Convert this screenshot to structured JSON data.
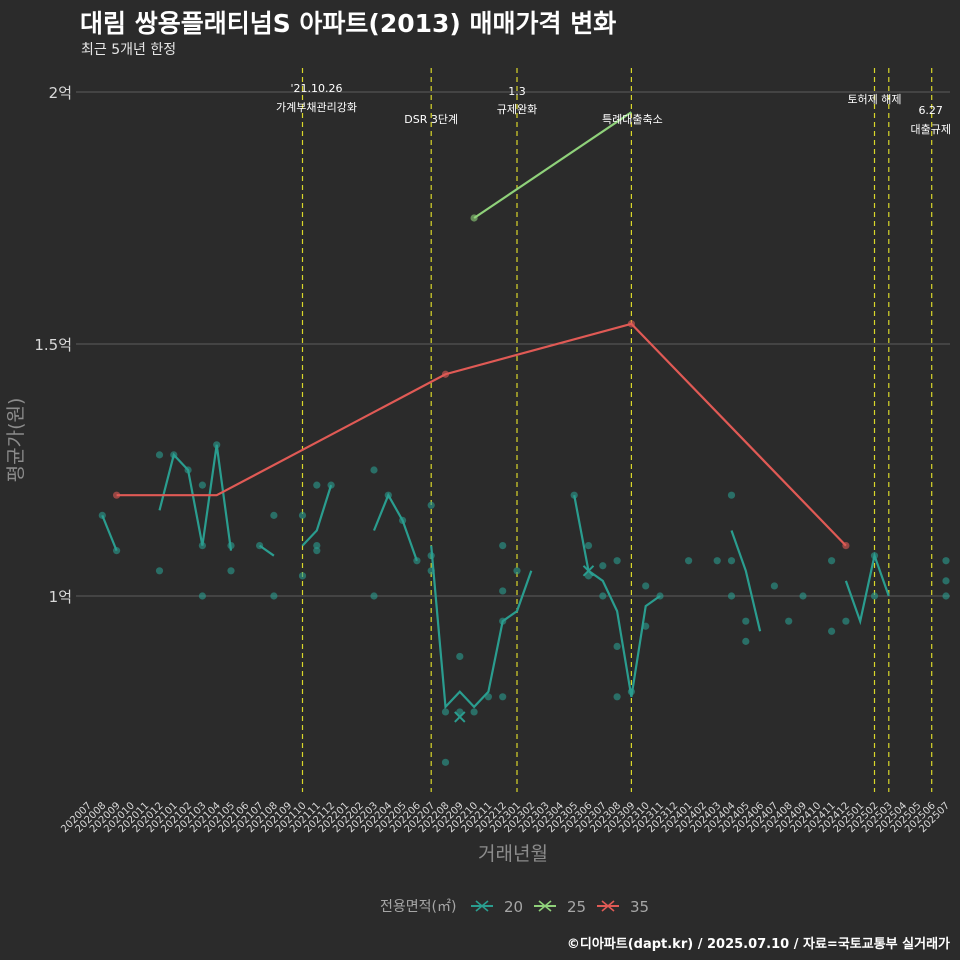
{
  "header": {
    "title": "대림 쌍용플래티넘S 아파트(2013) 매매가격 변화",
    "subtitle": "최근 5개년 한정",
    "caption": "©디아파트(dapt.kr) / 2025.07.10 / 자료=국토교통부 실거래가"
  },
  "chart_data": {
    "type": "line",
    "xlabel": "거래년월",
    "ylabel": "평균가(원)",
    "x_categories": [
      "202007",
      "202008",
      "202009",
      "202010",
      "202011",
      "202012",
      "202101",
      "202102",
      "202103",
      "202104",
      "202105",
      "202106",
      "202107",
      "202108",
      "202109",
      "202110",
      "202111",
      "202112",
      "202201",
      "202202",
      "202203",
      "202204",
      "202205",
      "202206",
      "202207",
      "202208",
      "202209",
      "202210",
      "202211",
      "202212",
      "202301",
      "202302",
      "202303",
      "202304",
      "202305",
      "202306",
      "202307",
      "202308",
      "202309",
      "202310",
      "202311",
      "202312",
      "202401",
      "202402",
      "202403",
      "202404",
      "202405",
      "202406",
      "202407",
      "202408",
      "202409",
      "202410",
      "202411",
      "202412",
      "202501",
      "202502",
      "202503",
      "202504",
      "202505",
      "202506",
      "202507"
    ],
    "y_ticks": [
      {
        "value": 100000000,
        "label": "1억"
      },
      {
        "value": 150000000,
        "label": "1.5억"
      },
      {
        "value": 200000000,
        "label": "2억"
      }
    ],
    "y_range": [
      76000000,
      204000000
    ],
    "legend": {
      "title": "전용면적(㎡)",
      "position": "bottom",
      "items": [
        {
          "label": "20",
          "color": "#2a9d8f"
        },
        {
          "label": "25",
          "color": "#8fd17a"
        },
        {
          "label": "35",
          "color": "#e05a55"
        }
      ]
    },
    "series": [
      {
        "name": "20",
        "color": "#2a9d8f",
        "line_segments": [
          [
            [
              "202008",
              116000000
            ],
            [
              "202009",
              109000000
            ]
          ],
          [
            [
              "202012",
              117000000
            ],
            [
              "202101",
              128000000
            ],
            [
              "202102",
              125000000
            ],
            [
              "202103",
              110000000
            ],
            [
              "202104",
              130000000
            ],
            [
              "202105",
              109000000
            ]
          ],
          [
            [
              "202107",
              110000000
            ],
            [
              "202108",
              108000000
            ]
          ],
          [
            [
              "202110",
              110000000
            ],
            [
              "202111",
              113000000
            ],
            [
              "202112",
              122000000
            ]
          ],
          [
            [
              "202203",
              113000000
            ],
            [
              "202204",
              120000000
            ],
            [
              "202205",
              115000000
            ],
            [
              "202206",
              107000000
            ]
          ],
          [
            [
              "202207",
              110000000
            ],
            [
              "202208",
              78000000
            ],
            [
              "202209",
              81000000
            ],
            [
              "202210",
              78000000
            ],
            [
              "202211",
              81000000
            ],
            [
              "202212",
              95000000
            ],
            [
              "202301",
              97000000
            ],
            [
              "202302",
              105000000
            ]
          ],
          [
            [
              "202305",
              120000000
            ],
            [
              "202306",
              105000000
            ],
            [
              "202307",
              103000000
            ],
            [
              "202308",
              97000000
            ],
            [
              "202309",
              80000000
            ],
            [
              "202310",
              98000000
            ],
            [
              "202311",
              100000000
            ]
          ],
          [
            [
              "202404",
              113000000
            ],
            [
              "202405",
              105000000
            ],
            [
              "202406",
              93000000
            ]
          ],
          [
            [
              "202412",
              103000000
            ],
            [
              "202501",
              95000000
            ],
            [
              "202502",
              108000000
            ],
            [
              "202503",
              100000000
            ]
          ]
        ],
        "points": [
          [
            "202008",
            116000000
          ],
          [
            "202009",
            109000000
          ],
          [
            "202012",
            105000000
          ],
          [
            "202012",
            128000000
          ],
          [
            "202101",
            128000000
          ],
          [
            "202102",
            125000000
          ],
          [
            "202103",
            122000000
          ],
          [
            "202103",
            110000000
          ],
          [
            "202103",
            100000000
          ],
          [
            "202104",
            130000000
          ],
          [
            "202105",
            110000000
          ],
          [
            "202105",
            105000000
          ],
          [
            "202107",
            110000000
          ],
          [
            "202108",
            116000000
          ],
          [
            "202108",
            100000000
          ],
          [
            "202110",
            116000000
          ],
          [
            "202110",
            104000000
          ],
          [
            "202111",
            122000000
          ],
          [
            "202111",
            110000000
          ],
          [
            "202111",
            109000000
          ],
          [
            "202112",
            122000000
          ],
          [
            "202203",
            125000000
          ],
          [
            "202203",
            100000000
          ],
          [
            "202204",
            120000000
          ],
          [
            "202205",
            115000000
          ],
          [
            "202206",
            107000000
          ],
          [
            "202207",
            118000000
          ],
          [
            "202207",
            108000000
          ],
          [
            "202207",
            105000000
          ],
          [
            "202208",
            77000000
          ],
          [
            "202208",
            67000000
          ],
          [
            "202209",
            88000000
          ],
          [
            "202209",
            77000000
          ],
          [
            "202210",
            77000000
          ],
          [
            "202211",
            80000000
          ],
          [
            "202212",
            80000000
          ],
          [
            "202212",
            101000000
          ],
          [
            "202212",
            110000000
          ],
          [
            "202212",
            95000000
          ],
          [
            "202301",
            105000000
          ],
          [
            "202305",
            120000000
          ],
          [
            "202306",
            110000000
          ],
          [
            "202306",
            104000000
          ],
          [
            "202307",
            106000000
          ],
          [
            "202307",
            100000000
          ],
          [
            "202308",
            107000000
          ],
          [
            "202308",
            90000000
          ],
          [
            "202308",
            80000000
          ],
          [
            "202309",
            81000000
          ],
          [
            "202310",
            102000000
          ],
          [
            "202310",
            94000000
          ],
          [
            "202311",
            100000000
          ],
          [
            "202401",
            107000000
          ],
          [
            "202403",
            107000000
          ],
          [
            "202404",
            120000000
          ],
          [
            "202404",
            107000000
          ],
          [
            "202404",
            100000000
          ],
          [
            "202405",
            95000000
          ],
          [
            "202405",
            91000000
          ],
          [
            "202407",
            102000000
          ],
          [
            "202408",
            95000000
          ],
          [
            "202409",
            100000000
          ],
          [
            "202411",
            107000000
          ],
          [
            "202411",
            93000000
          ],
          [
            "202412",
            95000000
          ],
          [
            "202502",
            108000000
          ],
          [
            "202502",
            100000000
          ],
          [
            "202507",
            107000000
          ],
          [
            "202507",
            103000000
          ],
          [
            "202507",
            100000000
          ]
        ],
        "x_marker": [
          "202209",
          76000000
        ],
        "x_marker_2": [
          "202306",
          105000000
        ]
      },
      {
        "name": "25",
        "color": "#8fd17a",
        "line_segments": [
          [
            [
              "202210",
              175000000
            ],
            [
              "202309",
              196000000
            ]
          ]
        ],
        "points": [
          [
            "202210",
            175000000
          ]
        ]
      },
      {
        "name": "35",
        "color": "#e05a55",
        "line_segments": [
          [
            [
              "202009",
              120000000
            ],
            [
              "202104",
              120000000
            ],
            [
              "202208",
              144000000
            ],
            [
              "202309",
              154000000
            ],
            [
              "202412",
              110000000
            ]
          ]
        ],
        "points": [
          [
            "202009",
            120000000
          ],
          [
            "202208",
            144000000
          ],
          [
            "202309",
            154000000
          ],
          [
            "202412",
            110000000
          ]
        ]
      }
    ],
    "events": [
      {
        "x": "202110",
        "lines": [
          "'21.10.26",
          "가계부채관리강화"
        ]
      },
      {
        "x": "202207",
        "lines": [
          "DSR 3단계"
        ]
      },
      {
        "x": "202301",
        "lines": [
          "1.3",
          "규제완화"
        ]
      },
      {
        "x": "202309",
        "lines": [
          "특례대출축소"
        ]
      },
      {
        "x": "202502",
        "lines": [
          "토허제 해제"
        ]
      },
      {
        "x": "202503",
        "lines": []
      },
      {
        "x": "202506",
        "lines": [
          "6.27",
          "대출규제"
        ]
      }
    ]
  }
}
